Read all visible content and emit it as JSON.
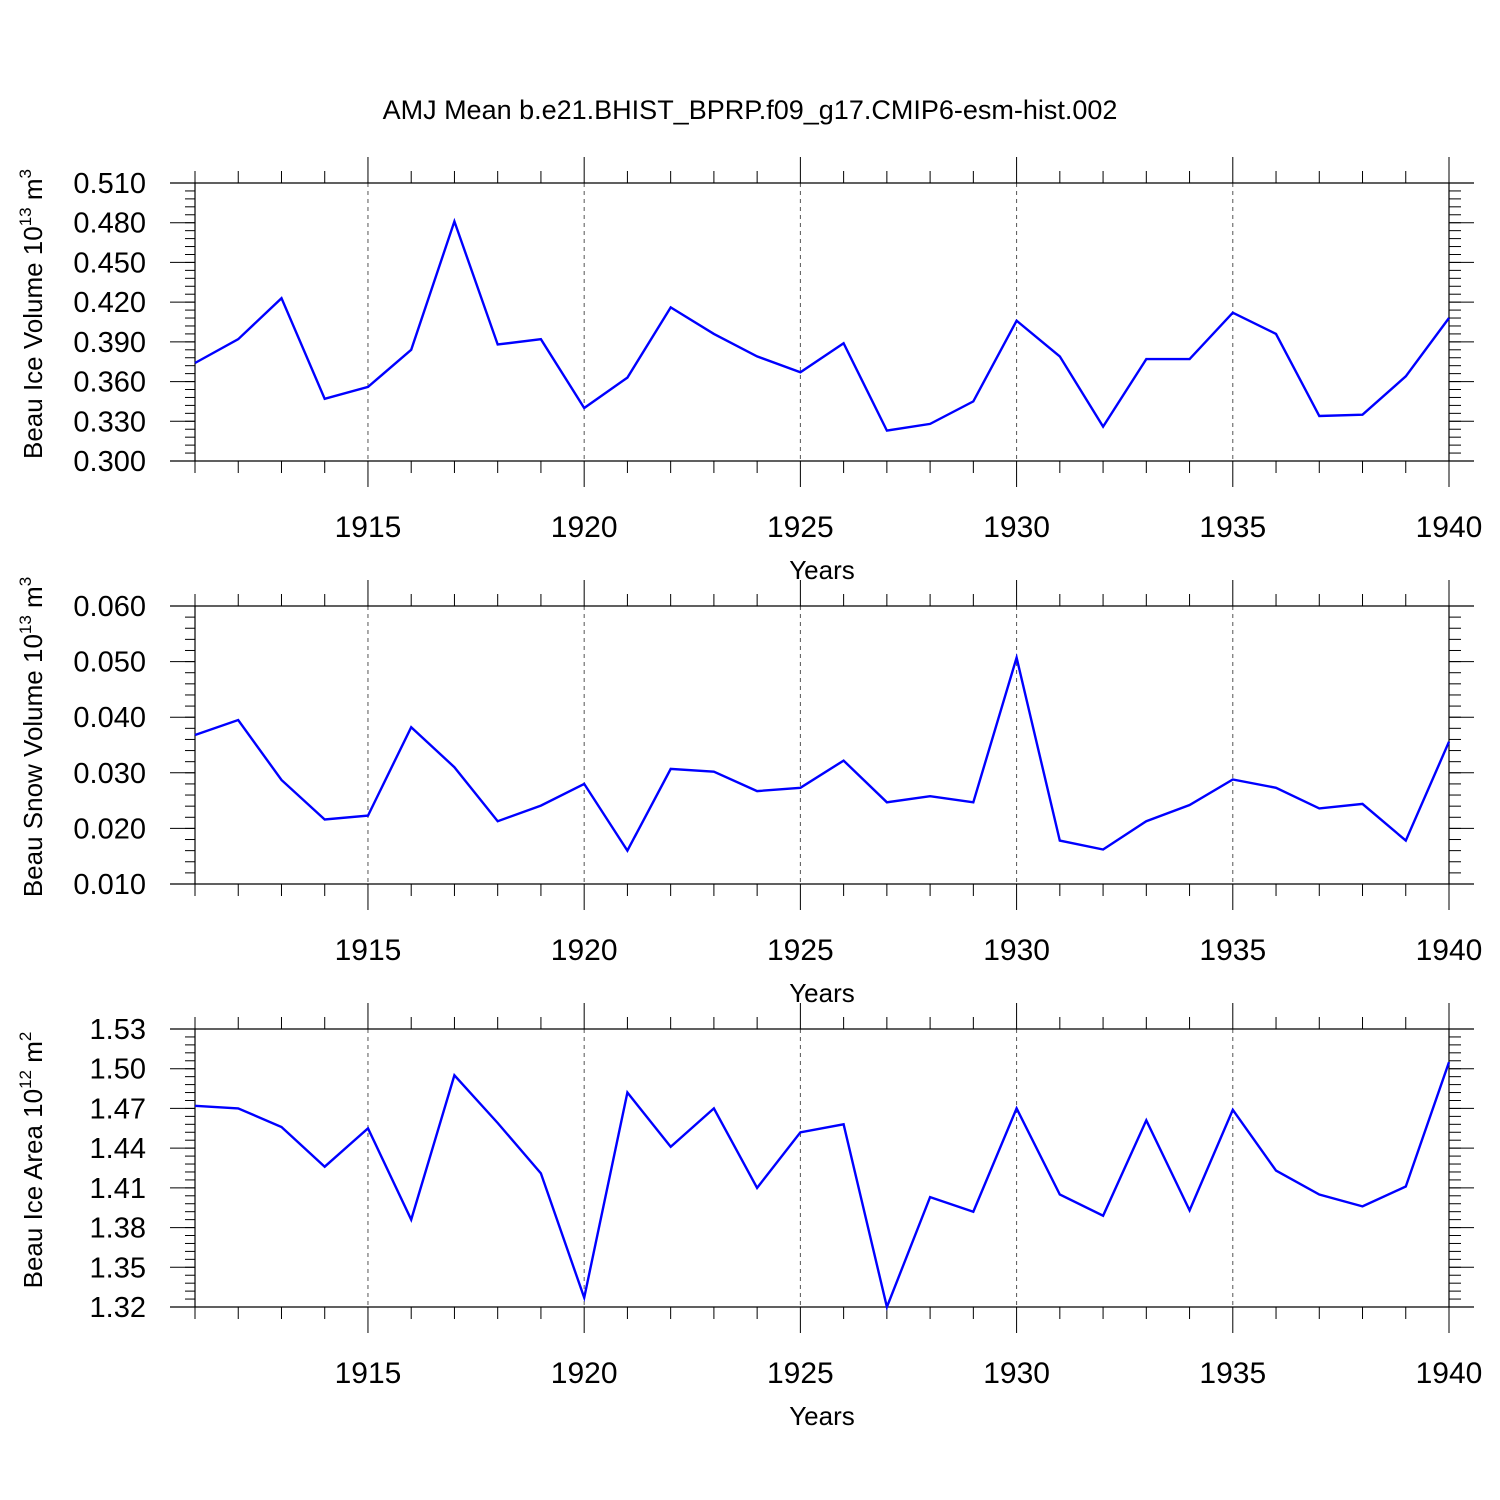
{
  "title": "AMJ Mean b.e21.BHIST_BPRP.f09_g17.CMIP6-esm-hist.002",
  "colors": {
    "series": "#0000ff",
    "grid": "#555555"
  },
  "chart_data": [
    {
      "type": "line",
      "ylabel": {
        "text": "Beau Ice Volume 10",
        "exp": "13",
        "unit": " m",
        "unit_exp": "3"
      },
      "xlabel": "Years",
      "xlim": [
        1911,
        1940
      ],
      "ylim": [
        0.3,
        0.51
      ],
      "yticks": [
        0.3,
        0.33,
        0.36,
        0.39,
        0.42,
        0.45,
        0.48,
        0.51
      ],
      "ytick_labels": [
        "0.300",
        "0.330",
        "0.360",
        "0.390",
        "0.420",
        "0.450",
        "0.480",
        "0.510"
      ],
      "yminor_step": 0.006,
      "xticks": [
        1915,
        1920,
        1925,
        1930,
        1935,
        1940
      ],
      "xtick_labels": [
        "1915",
        "1920",
        "1925",
        "1930",
        "1935",
        "1940"
      ],
      "grid": "x-dashed",
      "x": [
        1911,
        1912,
        1913,
        1914,
        1915,
        1916,
        1917,
        1918,
        1919,
        1920,
        1921,
        1922,
        1923,
        1924,
        1925,
        1926,
        1927,
        1928,
        1929,
        1930,
        1931,
        1932,
        1933,
        1934,
        1935,
        1936,
        1937,
        1938,
        1939,
        1940
      ],
      "values": [
        0.374,
        0.392,
        0.423,
        0.347,
        0.356,
        0.384,
        0.481,
        0.388,
        0.392,
        0.34,
        0.363,
        0.416,
        0.396,
        0.379,
        0.367,
        0.389,
        0.323,
        0.328,
        0.345,
        0.406,
        0.379,
        0.326,
        0.377,
        0.377,
        0.412,
        0.396,
        0.334,
        0.335,
        0.364,
        0.408
      ]
    },
    {
      "type": "line",
      "ylabel": {
        "text": "Beau Snow Volume 10",
        "exp": "13",
        "unit": " m",
        "unit_exp": "3"
      },
      "xlabel": "Years",
      "xlim": [
        1911,
        1940
      ],
      "ylim": [
        0.01,
        0.06
      ],
      "yticks": [
        0.01,
        0.02,
        0.03,
        0.04,
        0.05,
        0.06
      ],
      "ytick_labels": [
        "0.010",
        "0.020",
        "0.030",
        "0.040",
        "0.050",
        "0.060"
      ],
      "yminor_step": 0.002,
      "xticks": [
        1915,
        1920,
        1925,
        1930,
        1935,
        1940
      ],
      "xtick_labels": [
        "1915",
        "1920",
        "1925",
        "1930",
        "1935",
        "1940"
      ],
      "grid": "x-dashed",
      "x": [
        1911,
        1912,
        1913,
        1914,
        1915,
        1916,
        1917,
        1918,
        1919,
        1920,
        1921,
        1922,
        1923,
        1924,
        1925,
        1926,
        1927,
        1928,
        1929,
        1930,
        1931,
        1932,
        1933,
        1934,
        1935,
        1936,
        1937,
        1938,
        1939,
        1940
      ],
      "values": [
        0.0368,
        0.0395,
        0.0287,
        0.0216,
        0.0223,
        0.0382,
        0.031,
        0.0213,
        0.0241,
        0.028,
        0.016,
        0.0307,
        0.0302,
        0.0267,
        0.0273,
        0.0322,
        0.0247,
        0.0258,
        0.0247,
        0.0507,
        0.0178,
        0.0162,
        0.0213,
        0.0242,
        0.0288,
        0.0273,
        0.0236,
        0.0244,
        0.0178,
        0.0356
      ]
    },
    {
      "type": "line",
      "ylabel": {
        "text": "Beau Ice Area 10",
        "exp": "12",
        "unit": " m",
        "unit_exp": "2"
      },
      "xlabel": "Years",
      "xlim": [
        1911,
        1940
      ],
      "ylim": [
        1.32,
        1.53
      ],
      "yticks": [
        1.32,
        1.35,
        1.38,
        1.41,
        1.44,
        1.47,
        1.5,
        1.53
      ],
      "ytick_labels": [
        "1.32",
        "1.35",
        "1.38",
        "1.41",
        "1.44",
        "1.47",
        "1.50",
        "1.53"
      ],
      "yminor_step": 0.006,
      "xticks": [
        1915,
        1920,
        1925,
        1930,
        1935,
        1940
      ],
      "xtick_labels": [
        "1915",
        "1920",
        "1925",
        "1930",
        "1935",
        "1940"
      ],
      "grid": "x-dashed",
      "x": [
        1911,
        1912,
        1913,
        1914,
        1915,
        1916,
        1917,
        1918,
        1919,
        1920,
        1921,
        1922,
        1923,
        1924,
        1925,
        1926,
        1927,
        1928,
        1929,
        1930,
        1931,
        1932,
        1933,
        1934,
        1935,
        1936,
        1937,
        1938,
        1939,
        1940
      ],
      "values": [
        1.472,
        1.47,
        1.456,
        1.426,
        1.455,
        1.386,
        1.495,
        1.459,
        1.421,
        1.327,
        1.482,
        1.441,
        1.47,
        1.41,
        1.452,
        1.458,
        1.32,
        1.403,
        1.392,
        1.47,
        1.405,
        1.389,
        1.461,
        1.393,
        1.469,
        1.423,
        1.405,
        1.396,
        1.411,
        1.505
      ]
    }
  ]
}
